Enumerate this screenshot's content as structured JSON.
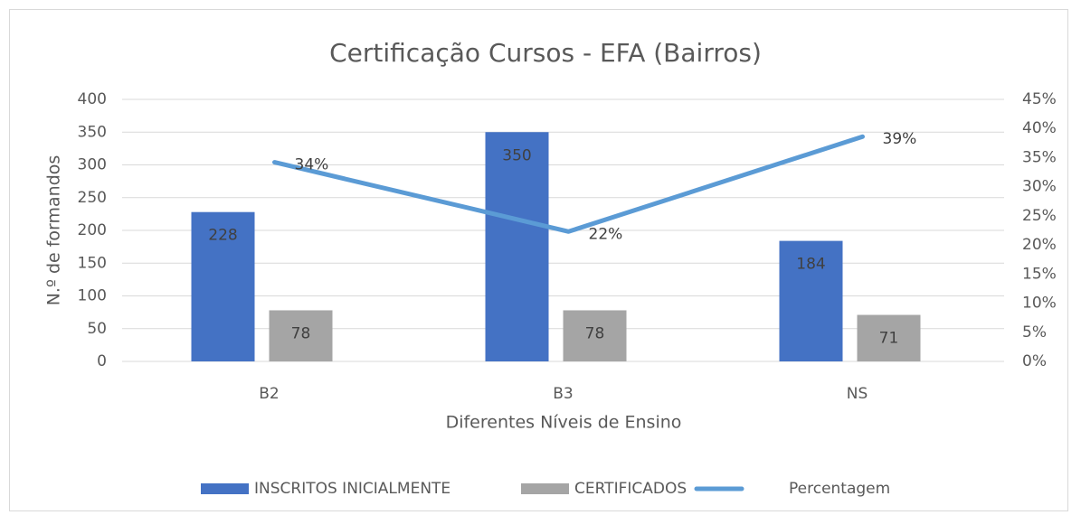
{
  "chart_data": {
    "type": "bar_line",
    "title": "Certificação Cursos - EFA (Bairros)",
    "x_label": "Diferentes Níveis de Ensino",
    "y_label": "N.º de formandos",
    "categories": [
      "B2",
      "B3",
      "NS"
    ],
    "series": [
      {
        "name": "INSCRITOS INICIALMENTE",
        "type": "bar",
        "color": "#4472c4",
        "values": [
          228,
          350,
          184
        ]
      },
      {
        "name": "CERTIFICADOS",
        "type": "bar",
        "color": "#a5a5a5",
        "values": [
          78,
          78,
          71
        ]
      },
      {
        "name": "Percentagem",
        "type": "line",
        "axis": "y2",
        "color": "#5b9bd5",
        "values": [
          34.2,
          22.3,
          38.6
        ],
        "value_labels": [
          "34%",
          "22%",
          "39%"
        ]
      }
    ],
    "ylim": [
      0,
      400
    ],
    "yticks": [
      0,
      50,
      100,
      150,
      200,
      250,
      300,
      350,
      400
    ],
    "y2lim": [
      0,
      45
    ],
    "y2ticks": [
      {
        "value": 0,
        "label": "0%"
      },
      {
        "value": 5,
        "label": "5%"
      },
      {
        "value": 10,
        "label": "10%"
      },
      {
        "value": 15,
        "label": "15%"
      },
      {
        "value": 20,
        "label": "20%"
      },
      {
        "value": 25,
        "label": "25%"
      },
      {
        "value": 30,
        "label": "30%"
      },
      {
        "value": 35,
        "label": "35%"
      },
      {
        "value": 40,
        "label": "40%"
      },
      {
        "value": 45,
        "label": "45%"
      }
    ],
    "grid": true,
    "legend": "bottom"
  }
}
